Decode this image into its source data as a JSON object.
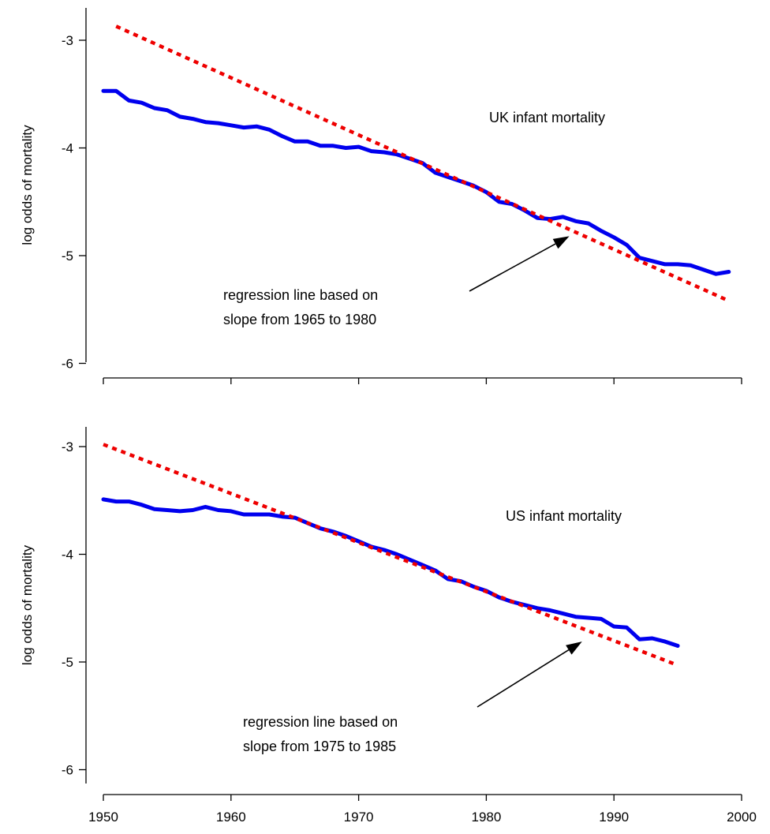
{
  "chart_data": [
    {
      "type": "line",
      "title": "UK infant mortality",
      "xlabel": "",
      "ylabel": "log odds of mortality",
      "xlim": [
        1948.6,
        2000
      ],
      "ylim": [
        -6.1,
        -2.7
      ],
      "x_ticks": [
        1950,
        1960,
        1970,
        1980,
        1990,
        2000
      ],
      "x_tick_labels": [],
      "y_ticks": [
        -3,
        -4,
        -5,
        -6
      ],
      "y_tick_labels": [
        "-3",
        "-4",
        "-5",
        "-6"
      ],
      "grid": false,
      "legend": "none",
      "series": [
        {
          "color": "#0000ee",
          "style": "solid",
          "x": [
            1950,
            1951,
            1952,
            1953,
            1954,
            1955,
            1956,
            1957,
            1958,
            1959,
            1960,
            1961,
            1962,
            1963,
            1964,
            1965,
            1966,
            1967,
            1968,
            1969,
            1970,
            1971,
            1972,
            1973,
            1974,
            1975,
            1976,
            1977,
            1978,
            1979,
            1980,
            1981,
            1982,
            1983,
            1984,
            1985,
            1986,
            1987,
            1988,
            1989,
            1990,
            1991,
            1992,
            1993,
            1994,
            1995,
            1996,
            1997,
            1998,
            1999
          ],
          "y": [
            -3.47,
            -3.47,
            -3.56,
            -3.58,
            -3.63,
            -3.65,
            -3.71,
            -3.73,
            -3.76,
            -3.77,
            -3.79,
            -3.81,
            -3.8,
            -3.83,
            -3.89,
            -3.94,
            -3.94,
            -3.98,
            -3.98,
            -4.0,
            -3.99,
            -4.03,
            -4.04,
            -4.06,
            -4.1,
            -4.14,
            -4.23,
            -4.27,
            -4.31,
            -4.35,
            -4.41,
            -4.5,
            -4.52,
            -4.58,
            -4.65,
            -4.66,
            -4.64,
            -4.68,
            -4.7,
            -4.77,
            -4.83,
            -4.9,
            -5.02,
            -5.05,
            -5.08,
            -5.08,
            -5.09,
            -5.13,
            -5.17,
            -5.15
          ]
        },
        {
          "color": "#ee0000",
          "style": "dotted",
          "x": [
            1951,
            1999
          ],
          "y": [
            -2.87,
            -5.42
          ]
        }
      ],
      "annotations": [
        {
          "lines": [
            "regression line based on",
            "slope from 1965 to 1980"
          ],
          "arrow_to": [
            1986.5,
            -4.82
          ]
        }
      ]
    },
    {
      "type": "line",
      "title": "US infant mortality",
      "xlabel": "",
      "ylabel": "log odds of mortality",
      "xlim": [
        1948.6,
        2000
      ],
      "ylim": [
        -6.1,
        -2.7
      ],
      "x_ticks": [
        1950,
        1960,
        1970,
        1980,
        1990,
        2000
      ],
      "x_tick_labels": [
        "1950",
        "1960",
        "1970",
        "1980",
        "1990",
        "2000"
      ],
      "y_ticks": [
        -3,
        -4,
        -5,
        -6
      ],
      "y_tick_labels": [
        "-3",
        "-4",
        "-5",
        "-6"
      ],
      "grid": false,
      "legend": "none",
      "series": [
        {
          "color": "#0000ee",
          "style": "solid",
          "x": [
            1950,
            1951,
            1952,
            1953,
            1954,
            1955,
            1956,
            1957,
            1958,
            1959,
            1960,
            1961,
            1962,
            1963,
            1964,
            1965,
            1966,
            1967,
            1968,
            1969,
            1970,
            1971,
            1972,
            1973,
            1974,
            1975,
            1976,
            1977,
            1978,
            1979,
            1980,
            1981,
            1982,
            1983,
            1984,
            1985,
            1986,
            1987,
            1988,
            1989,
            1990,
            1991,
            1992,
            1993,
            1994,
            1995
          ],
          "y": [
            -3.49,
            -3.51,
            -3.51,
            -3.54,
            -3.58,
            -3.59,
            -3.6,
            -3.59,
            -3.56,
            -3.59,
            -3.6,
            -3.63,
            -3.63,
            -3.63,
            -3.65,
            -3.66,
            -3.71,
            -3.76,
            -3.79,
            -3.83,
            -3.88,
            -3.93,
            -3.96,
            -4.0,
            -4.05,
            -4.1,
            -4.15,
            -4.23,
            -4.25,
            -4.3,
            -4.34,
            -4.4,
            -4.44,
            -4.47,
            -4.5,
            -4.52,
            -4.55,
            -4.58,
            -4.59,
            -4.6,
            -4.67,
            -4.68,
            -4.79,
            -4.78,
            -4.81,
            -4.85
          ]
        },
        {
          "color": "#ee0000",
          "style": "dotted",
          "x": [
            1950,
            1995
          ],
          "y": [
            -2.98,
            -5.03
          ]
        }
      ],
      "annotations": [
        {
          "lines": [
            "regression line based on",
            "slope from 1975 to 1985"
          ],
          "arrow_to": [
            1987.5,
            -4.81
          ]
        }
      ]
    }
  ]
}
